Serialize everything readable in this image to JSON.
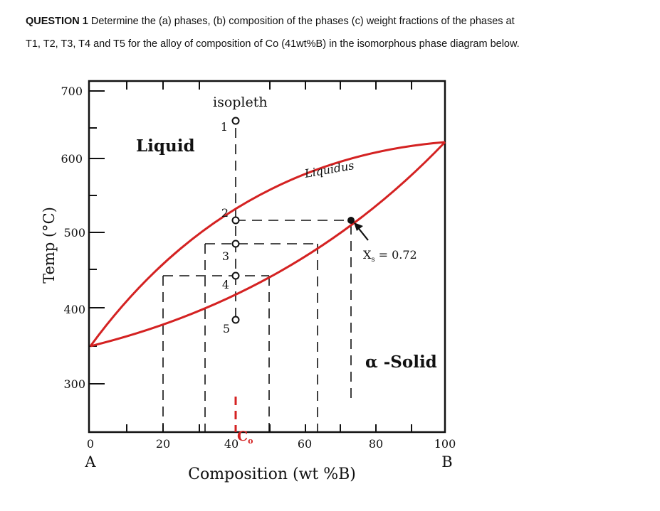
{
  "question": {
    "lead": "QUESTION 1",
    "line1": " Determine the (a) phases, (b) composition of the phases (c) weight fractions of the phases at",
    "line2": "T1, T2, T3, T4 and T5 for the alloy of composition of Co (41wt%B) in the isomorphous phase diagram below."
  },
  "diagram": {
    "ylabel": "Temp (°C)",
    "xlabel": "Composition (wt %B)",
    "y_ticks": [
      "700",
      "600",
      "500",
      "400",
      "300"
    ],
    "x_ticks": [
      "0",
      "20",
      "40",
      "60",
      "80",
      "100"
    ],
    "end_A": "A",
    "end_B": "B",
    "region_liquid": "Liquid",
    "region_solid": "α -Solid",
    "liquidus_label": "Liquidus",
    "isopleth_label": "isopleth",
    "points": [
      "1",
      "2",
      "3",
      "4",
      "5"
    ],
    "xs_label": "X",
    "xs_sub": "s",
    "xs_value": " = 0.72",
    "co_label": "C",
    "co_sub": "o",
    "colors": {
      "curve": "#d42222",
      "axis": "#111111",
      "marker": "#d42222"
    }
  }
}
